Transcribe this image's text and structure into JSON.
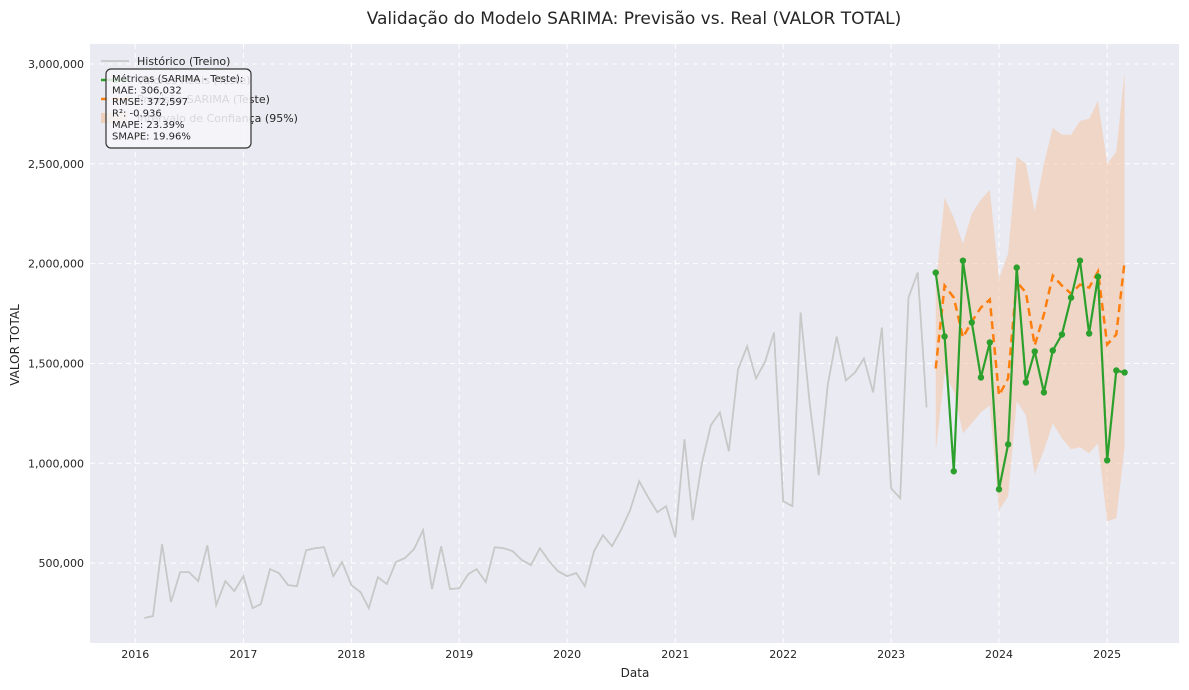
{
  "chart_data": {
    "type": "line",
    "title": "Validação do Modelo SARIMA: Previsão vs. Real (VALOR TOTAL)",
    "xlabel": "Data",
    "ylabel": "VALOR TOTAL",
    "xlim": [
      "2015-08-01",
      "2025-09-01"
    ],
    "ylim": [
      100000,
      3100000
    ],
    "x_ticks": [
      "2016",
      "2017",
      "2018",
      "2019",
      "2020",
      "2021",
      "2022",
      "2023",
      "2024",
      "2025"
    ],
    "y_ticks": [
      {
        "value": 500000,
        "label": "500,000"
      },
      {
        "value": 1000000,
        "label": "1,000,000"
      },
      {
        "value": 1500000,
        "label": "1,500,000"
      },
      {
        "value": 2000000,
        "label": "2,000,000"
      },
      {
        "value": 2500000,
        "label": "2,500,000"
      },
      {
        "value": 3000000,
        "label": "3,000,000"
      }
    ],
    "grid": true,
    "legend_position": "top-left",
    "colors": {
      "plot_bg": "#eaeaf2",
      "grid": "#ffffff",
      "historico": "#c8c8c8",
      "reais": "#2ca02c",
      "previsao": "#ff7f0e",
      "intervalo": "#f2c4a4"
    },
    "legend": [
      {
        "key": "historico",
        "label": "Histórico (Treino)"
      },
      {
        "key": "reais",
        "label": "Valores Reais (Teste)"
      },
      {
        "key": "previsao",
        "label": "Previsão SARIMA (Teste)"
      },
      {
        "key": "intervalo",
        "label": "Intervalo de Confiança (95%)"
      }
    ],
    "metrics_box": [
      "Métricas (SARIMA - Teste):",
      "MAE: 306,032",
      "RMSE: 372,597",
      "R²: -0.936",
      "MAPE: 23.39%",
      "SMAPE: 19.96%"
    ],
    "series": [
      {
        "name": "Histórico (Treino)",
        "key": "historico",
        "x": [
          "2016-02-01",
          "2016-03-01",
          "2016-04-01",
          "2016-05-01",
          "2016-06-01",
          "2016-07-01",
          "2016-08-01",
          "2016-09-01",
          "2016-10-01",
          "2016-11-01",
          "2016-12-01",
          "2017-01-01",
          "2017-02-01",
          "2017-03-01",
          "2017-04-01",
          "2017-05-01",
          "2017-06-01",
          "2017-07-01",
          "2017-08-01",
          "2017-09-01",
          "2017-10-01",
          "2017-11-01",
          "2017-12-01",
          "2018-01-01",
          "2018-02-01",
          "2018-03-01",
          "2018-04-01",
          "2018-05-01",
          "2018-06-01",
          "2018-07-01",
          "2018-08-01",
          "2018-09-01",
          "2018-10-01",
          "2018-11-01",
          "2018-12-01",
          "2019-01-01",
          "2019-02-01",
          "2019-03-01",
          "2019-04-01",
          "2019-05-01",
          "2019-06-01",
          "2019-07-01",
          "2019-08-01",
          "2019-09-01",
          "2019-10-01",
          "2019-11-01",
          "2019-12-01",
          "2020-01-01",
          "2020-02-01",
          "2020-03-01",
          "2020-04-01",
          "2020-05-01",
          "2020-06-01",
          "2020-07-01",
          "2020-08-01",
          "2020-09-01",
          "2020-10-01",
          "2020-11-01",
          "2020-12-01",
          "2021-01-01",
          "2021-02-01",
          "2021-03-01",
          "2021-04-01",
          "2021-05-01",
          "2021-06-01",
          "2021-07-01",
          "2021-08-01",
          "2021-09-01",
          "2021-10-01",
          "2021-11-01",
          "2021-12-01",
          "2022-01-01",
          "2022-02-01",
          "2022-03-01",
          "2022-04-01",
          "2022-05-01",
          "2022-06-01",
          "2022-07-01",
          "2022-08-01",
          "2022-09-01",
          "2022-10-01",
          "2022-11-01",
          "2022-12-01",
          "2023-01-01",
          "2023-02-01",
          "2023-03-01",
          "2023-04-01",
          "2023-05-01"
        ],
        "values": [
          225000,
          235000,
          595000,
          305000,
          455000,
          455000,
          410000,
          590000,
          290000,
          410000,
          360000,
          435000,
          275000,
          295000,
          470000,
          450000,
          390000,
          385000,
          565000,
          575000,
          580000,
          435000,
          505000,
          390000,
          355000,
          275000,
          430000,
          395000,
          505000,
          525000,
          570000,
          665000,
          370000,
          585000,
          370000,
          375000,
          445000,
          470000,
          405000,
          580000,
          575000,
          560000,
          515000,
          490000,
          575000,
          510000,
          460000,
          435000,
          450000,
          385000,
          560000,
          640000,
          585000,
          665000,
          765000,
          910000,
          830000,
          755000,
          785000,
          630000,
          1120000,
          715000,
          1000000,
          1190000,
          1255000,
          1060000,
          1470000,
          1585000,
          1425000,
          1510000,
          1655000,
          810000,
          785000,
          1755000,
          1295000,
          940000,
          1395000,
          1635000,
          1415000,
          1455000,
          1525000,
          1355000,
          1680000,
          875000,
          825000,
          1830000,
          1955000,
          1280000
        ]
      },
      {
        "name": "Valores Reais (Teste)",
        "key": "reais",
        "x": [
          "2023-06-01",
          "2023-07-01",
          "2023-08-01",
          "2023-09-01",
          "2023-10-01",
          "2023-11-01",
          "2023-12-01",
          "2024-01-01",
          "2024-02-01",
          "2024-03-01",
          "2024-04-01",
          "2024-05-01",
          "2024-06-01",
          "2024-07-01",
          "2024-08-01",
          "2024-09-01",
          "2024-10-01",
          "2024-11-01",
          "2024-12-01",
          "2025-01-01",
          "2025-02-01",
          "2025-03-01"
        ],
        "values": [
          1955000,
          1635000,
          960000,
          2015000,
          1705000,
          1430000,
          1605000,
          870000,
          1095000,
          1980000,
          1405000,
          1560000,
          1355000,
          1565000,
          1645000,
          1830000,
          2015000,
          1650000,
          1935000,
          1015000,
          1465000,
          1455000
        ]
      },
      {
        "name": "Previsão SARIMA (Teste)",
        "key": "previsao",
        "x": [
          "2023-06-01",
          "2023-07-01",
          "2023-08-01",
          "2023-09-01",
          "2023-10-01",
          "2023-11-01",
          "2023-12-01",
          "2024-01-01",
          "2024-02-01",
          "2024-03-01",
          "2024-04-01",
          "2024-05-01",
          "2024-06-01",
          "2024-07-01",
          "2024-08-01",
          "2024-09-01",
          "2024-10-01",
          "2024-11-01",
          "2024-12-01",
          "2025-01-01",
          "2025-02-01",
          "2025-03-01"
        ],
        "values": [
          1475000,
          1890000,
          1830000,
          1630000,
          1710000,
          1780000,
          1820000,
          1340000,
          1425000,
          1910000,
          1855000,
          1590000,
          1745000,
          1940000,
          1890000,
          1850000,
          1895000,
          1880000,
          1960000,
          1595000,
          1645000,
          2010000
        ]
      },
      {
        "name": "Intervalo de Confiança (95%)",
        "key": "intervalo",
        "x": [
          "2023-06-01",
          "2023-07-01",
          "2023-08-01",
          "2023-09-01",
          "2023-10-01",
          "2023-11-01",
          "2023-12-01",
          "2024-01-01",
          "2024-02-01",
          "2024-03-01",
          "2024-04-01",
          "2024-05-01",
          "2024-06-01",
          "2024-07-01",
          "2024-08-01",
          "2024-09-01",
          "2024-10-01",
          "2024-11-01",
          "2024-12-01",
          "2025-01-01",
          "2025-02-01",
          "2025-03-01"
        ],
        "lower": [
          1060000,
          1450000,
          1360000,
          1150000,
          1200000,
          1255000,
          1290000,
          765000,
          835000,
          1310000,
          1240000,
          945000,
          1065000,
          1200000,
          1125000,
          1070000,
          1080000,
          1050000,
          1100000,
          710000,
          725000,
          1080000
        ],
        "upper": [
          1890000,
          2330000,
          2230000,
          2100000,
          2250000,
          2320000,
          2370000,
          1925000,
          2050000,
          2535000,
          2500000,
          2260000,
          2500000,
          2680000,
          2645000,
          2645000,
          2715000,
          2725000,
          2815000,
          2500000,
          2560000,
          2960000
        ]
      }
    ]
  }
}
